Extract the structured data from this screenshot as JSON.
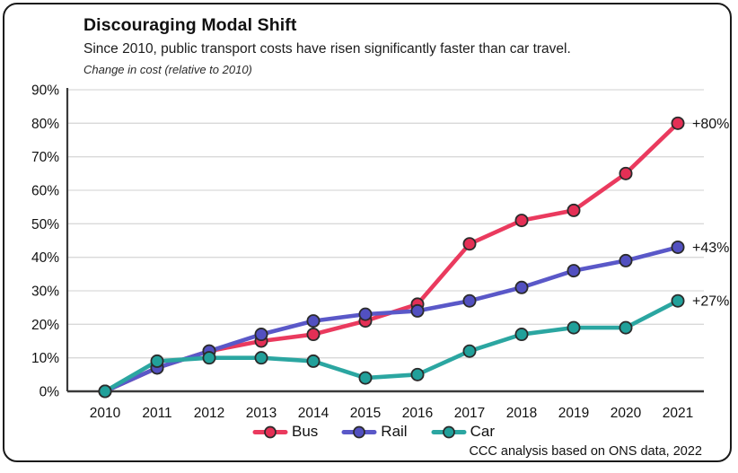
{
  "header": {
    "title": "Discouraging Modal Shift",
    "subtitle": "Since 2010, public transport costs have risen significantly faster than car travel.",
    "note": "Change in cost (relative to 2010)"
  },
  "chart_data": {
    "type": "line",
    "x": [
      2010,
      2011,
      2012,
      2013,
      2014,
      2015,
      2016,
      2017,
      2018,
      2019,
      2020,
      2021
    ],
    "series": [
      {
        "name": "Bus",
        "color": "#ea3a5e",
        "point_fill": "#e42f55",
        "values": [
          0,
          7,
          12,
          15,
          17,
          21,
          26,
          44,
          51,
          54,
          65,
          80
        ],
        "end_label": "+80%"
      },
      {
        "name": "Rail",
        "color": "#5a58c8",
        "point_fill": "#5250c0",
        "values": [
          0,
          7,
          12,
          17,
          21,
          23,
          24,
          27,
          31,
          36,
          39,
          43
        ],
        "end_label": "+43%"
      },
      {
        "name": "Car",
        "color": "#2ba6a1",
        "point_fill": "#21a09a",
        "values": [
          0,
          9,
          10,
          10,
          9,
          4,
          5,
          12,
          17,
          19,
          19,
          27
        ],
        "end_label": "+27%"
      }
    ],
    "ylabel": "Change in cost (relative to 2010)",
    "ylim": [
      0,
      90
    ],
    "ytick_step": 10,
    "ytick_suffix": "%",
    "grid": true,
    "legend_position": "bottom",
    "colors": {
      "grid": "#d9d9d9",
      "axis": "#3a3a3a",
      "tick_text": "#111111",
      "point_stroke": "#2b2b2b"
    }
  },
  "footer": {
    "source": "CCC analysis based on ONS data, 2022"
  }
}
